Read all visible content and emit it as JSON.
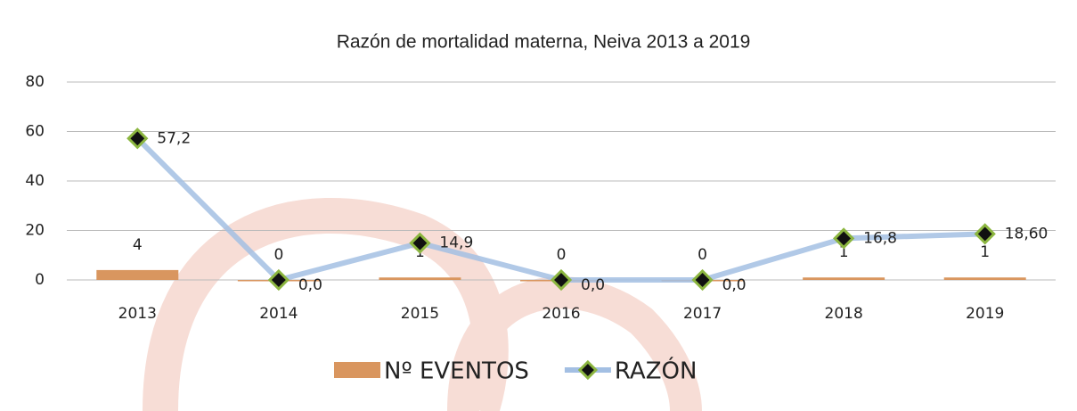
{
  "chart_data": {
    "type": "combo",
    "title": "Razón de mortalidad materna, Neiva 2013 a 2019",
    "categories": [
      "2013",
      "2014",
      "2015",
      "2016",
      "2017",
      "2018",
      "2019"
    ],
    "series": [
      {
        "name": "Nº EVENTOS",
        "type": "bar",
        "color": "#d9965f",
        "values": [
          4,
          0,
          1,
          0,
          0,
          1,
          1
        ]
      },
      {
        "name": "RAZÓN",
        "type": "line",
        "color": "#a3bfe3",
        "marker_color": "#8cb640",
        "values": [
          57.2,
          0,
          14.9,
          0,
          0,
          16.8,
          18.6
        ],
        "value_labels": [
          "57,2",
          "0,0",
          "14,9",
          "0,0",
          "0,0",
          "16,8",
          "18,60"
        ]
      }
    ],
    "ylim": [
      0,
      80
    ],
    "yticks": [
      0,
      20,
      40,
      60,
      80
    ],
    "grid": true,
    "legend": "bottom"
  }
}
